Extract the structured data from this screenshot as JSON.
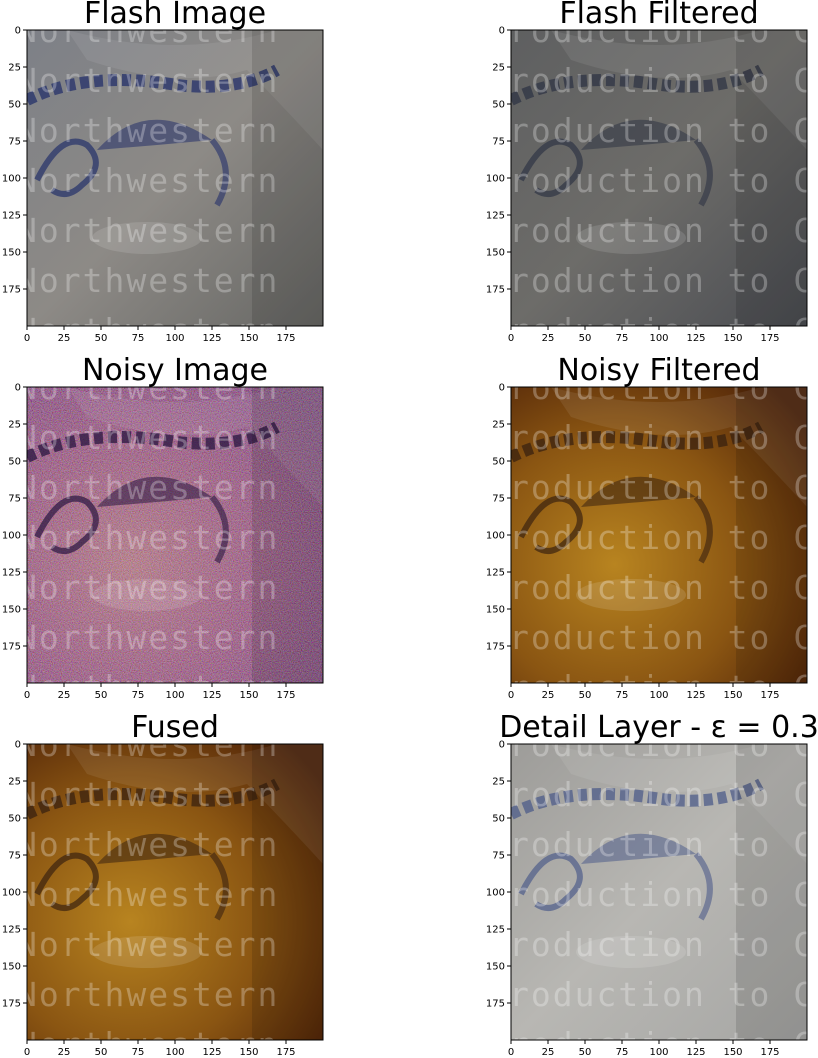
{
  "figure": {
    "panels": [
      {
        "title": "Flash Image",
        "palette": "gray-blue"
      },
      {
        "title": "Flash Filtered",
        "palette": "dark-gray"
      },
      {
        "title": "Noisy Image",
        "palette": "noisy-orange"
      },
      {
        "title": "Noisy Filtered",
        "palette": "orange"
      },
      {
        "title": "Fused",
        "palette": "orange"
      },
      {
        "title": "Detail Layer - ε = 0.3",
        "palette": "light-gray"
      }
    ],
    "ticks": {
      "x": [
        "0",
        "25",
        "50",
        "75",
        "100",
        "125",
        "150",
        "175"
      ],
      "y": [
        "0",
        "25",
        "50",
        "75",
        "100",
        "125",
        "150",
        "175"
      ],
      "range": [
        0,
        200
      ]
    },
    "watermark_left": "Northwestern",
    "watermark_right": "roduction to C"
  }
}
